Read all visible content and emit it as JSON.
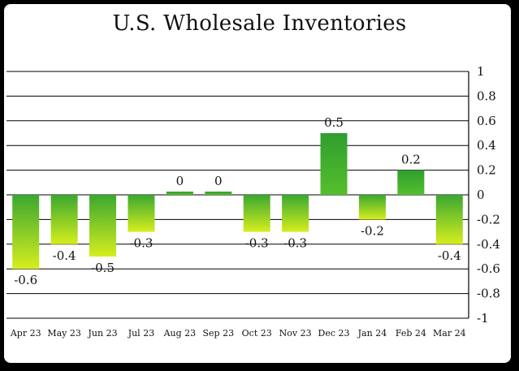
{
  "chart_data": {
    "type": "bar",
    "title": "U.S. Wholesale Inventories",
    "xlabel": "",
    "ylabel": "",
    "categories": [
      "Apr 23",
      "May 23",
      "Jun 23",
      "Jul 23",
      "Aug 23",
      "Sep 23",
      "Oct 23",
      "Nov 23",
      "Dec 23",
      "Jan 24",
      "Feb 24",
      "Mar 24"
    ],
    "values": [
      -0.6,
      -0.4,
      -0.5,
      -0.3,
      0.0,
      0.0,
      -0.3,
      -0.3,
      0.5,
      -0.2,
      0.2,
      -0.4
    ],
    "data_labels": [
      "-0.6",
      "-0.4",
      "-0.5",
      "-0.3",
      "0",
      "0",
      "-0.3",
      "-0.3",
      "0.5",
      "-0.2",
      "0.2",
      "-0.4"
    ],
    "ylim": [
      -1,
      1
    ],
    "yticks": [
      "1",
      "0.8",
      "0.6",
      "0.4",
      "0.2",
      "0",
      "-0.2",
      "-0.4",
      "-0.6",
      "-0.8",
      "-1"
    ],
    "ytick_values": [
      1,
      0.8,
      0.6,
      0.4,
      0.2,
      0,
      -0.2,
      -0.4,
      -0.6,
      -0.8,
      -1
    ],
    "y_axis_side": "right",
    "grid": true,
    "legend": "none",
    "colors": {
      "positive_top": "#2e9e2e",
      "positive_bottom": "#55bf2c",
      "negative_top": "#3aa830",
      "negative_bottom": "#d6ee1e",
      "gridline": "#000000",
      "background": "#ffffff"
    }
  }
}
